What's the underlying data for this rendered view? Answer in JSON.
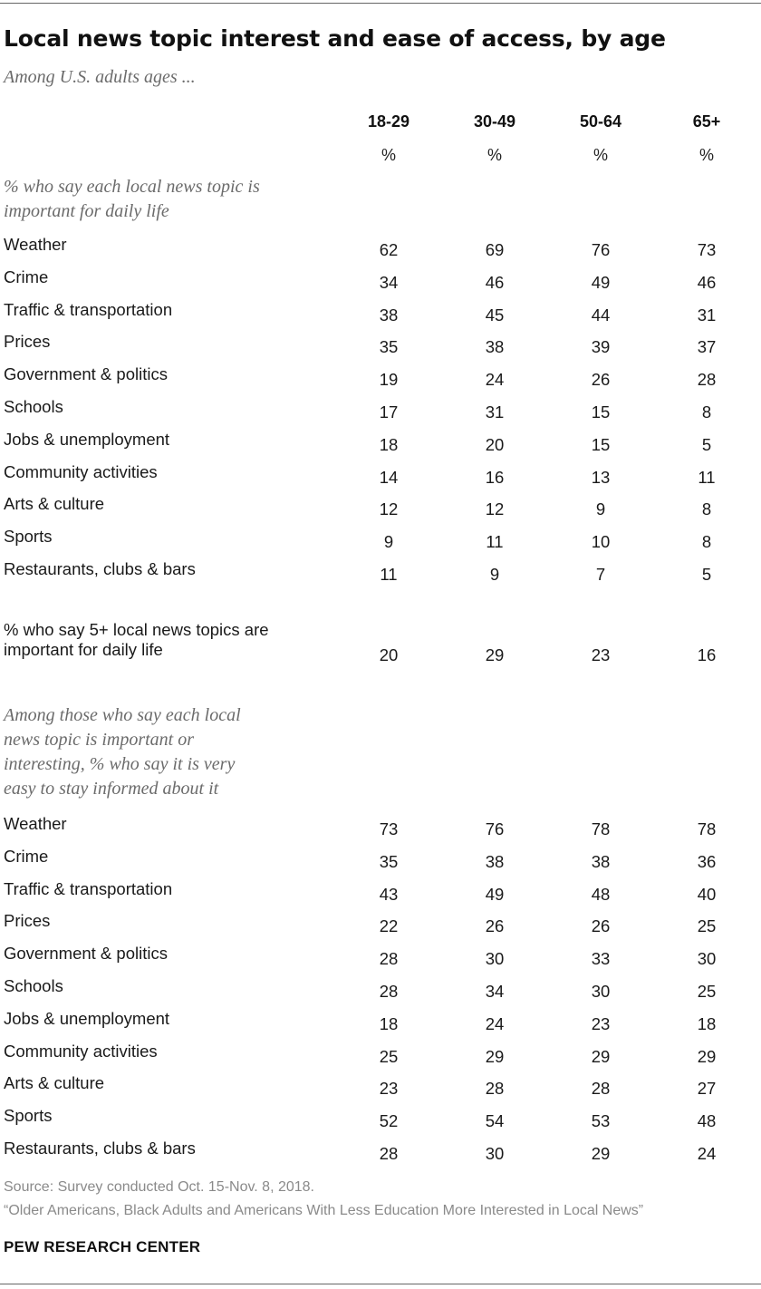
{
  "title": "Local news topic interest and ease of access, by age",
  "subtitle": "Among U.S. adults ages ...",
  "chart_data": {
    "type": "table",
    "columns": [
      "18-29",
      "30-49",
      "50-64",
      "65+"
    ],
    "unit_row": [
      "%",
      "%",
      "%",
      "%"
    ],
    "importance": {
      "heading_line1": "% who say each local news topic is",
      "heading_line2": "important for daily life",
      "rows": [
        {
          "label": "Weather",
          "values": [
            "62",
            "69",
            "76",
            "73"
          ]
        },
        {
          "label": "Crime",
          "values": [
            "34",
            "46",
            "49",
            "46"
          ]
        },
        {
          "label": "Traffic & transportation",
          "values": [
            "38",
            "45",
            "44",
            "31"
          ]
        },
        {
          "label": "Prices",
          "values": [
            "35",
            "38",
            "39",
            "37"
          ]
        },
        {
          "label": "Government & politics",
          "values": [
            "19",
            "24",
            "26",
            "28"
          ]
        },
        {
          "label": "Schools",
          "values": [
            "17",
            "31",
            "15",
            "8"
          ]
        },
        {
          "label": "Jobs & unemployment",
          "values": [
            "18",
            "20",
            "15",
            "5"
          ]
        },
        {
          "label": "Community activities",
          "values": [
            "14",
            "16",
            "13",
            "11"
          ]
        },
        {
          "label": "Arts & culture",
          "values": [
            "12",
            "12",
            "9",
            "8"
          ]
        },
        {
          "label": "Sports",
          "values": [
            "9",
            "11",
            "10",
            "8"
          ]
        },
        {
          "label": "Restaurants, clubs & bars",
          "values": [
            "11",
            "9",
            "7",
            "5"
          ]
        }
      ]
    },
    "summary": {
      "label_line1": "% who say 5+ local news topics are",
      "label_line2": "important for daily life",
      "values": [
        "20",
        "29",
        "23",
        "16"
      ]
    },
    "ease": {
      "heading_line1": "Among those who say each local",
      "heading_line2": "news topic is important or",
      "heading_line3": "interesting, % who say it is very",
      "heading_line4": "easy to stay informed about it",
      "rows": [
        {
          "label": "Weather",
          "values": [
            "73",
            "76",
            "78",
            "78"
          ]
        },
        {
          "label": "Crime",
          "values": [
            "35",
            "38",
            "38",
            "36"
          ]
        },
        {
          "label": "Traffic & transportation",
          "values": [
            "43",
            "49",
            "48",
            "40"
          ]
        },
        {
          "label": "Prices",
          "values": [
            "22",
            "26",
            "26",
            "25"
          ]
        },
        {
          "label": "Government & politics",
          "values": [
            "28",
            "30",
            "33",
            "30"
          ]
        },
        {
          "label": "Schools",
          "values": [
            "28",
            "34",
            "30",
            "25"
          ]
        },
        {
          "label": "Jobs & unemployment",
          "values": [
            "18",
            "24",
            "23",
            "18"
          ]
        },
        {
          "label": "Community activities",
          "values": [
            "25",
            "29",
            "29",
            "29"
          ]
        },
        {
          "label": "Arts & culture",
          "values": [
            "23",
            "28",
            "28",
            "27"
          ]
        },
        {
          "label": "Sports",
          "values": [
            "52",
            "54",
            "53",
            "48"
          ]
        },
        {
          "label": "Restaurants, clubs & bars",
          "values": [
            "28",
            "30",
            "29",
            "24"
          ]
        }
      ]
    }
  },
  "source": "Source: Survey conducted Oct. 15-Nov. 8, 2018.",
  "report": "“Older Americans, Black Adults and Americans With Less Education More Interested in Local News”",
  "brand": "PEW RESEARCH CENTER"
}
